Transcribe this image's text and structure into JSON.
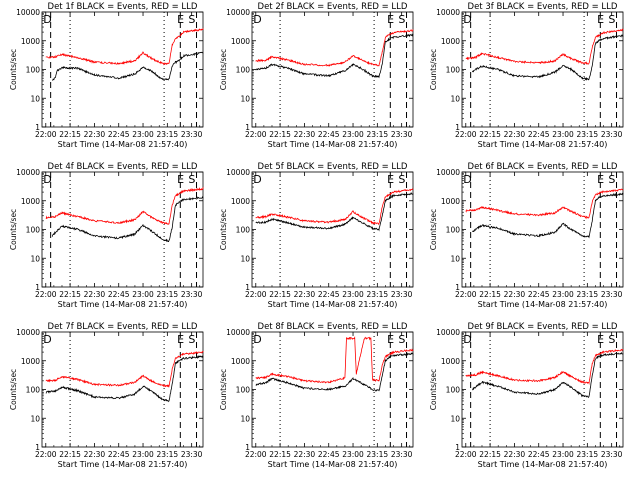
{
  "xlabel": "Start Time (14-Mar-08 21:57:40)",
  "ylabel": "Counts/sec",
  "colors": {
    "events": "#000000",
    "lld": "#ff0000",
    "axes": "#000000"
  },
  "ytick_labels": [
    "1",
    "10",
    "100",
    "1000",
    "10000"
  ],
  "xtick_labels": [
    "22:00",
    "22:15",
    "22:30",
    "22:45",
    "23:00",
    "23:15",
    "23:30"
  ],
  "chart_data": [
    {
      "type": "line",
      "title": "Det 1f BLACK = Events, RED = LLD",
      "marks": [
        "D",
        "E",
        "S"
      ],
      "x_range": [
        "21:57:40",
        "23:37:00"
      ],
      "y_scale": "log",
      "ylim": [
        1,
        10000
      ],
      "dashed_lines": [
        "22:03",
        "23:23",
        "23:33"
      ],
      "dotted_lines": [
        "22:15",
        "23:13"
      ],
      "series": [
        {
          "name": "Events",
          "x": [
            "22:04",
            "22:06",
            "22:07",
            "22:10",
            "22:20",
            "22:30",
            "22:45",
            "22:55",
            "23:00",
            "23:05",
            "23:12",
            "23:16",
            "23:18",
            "23:20",
            "23:22",
            "23:25",
            "23:37"
          ],
          "y": [
            40,
            55,
            90,
            115,
            110,
            65,
            50,
            70,
            120,
            90,
            45,
            45,
            130,
            180,
            200,
            300,
            380
          ]
        },
        {
          "name": "LLD",
          "x": [
            "22:00",
            "22:06",
            "22:10",
            "22:20",
            "22:30",
            "22:45",
            "22:55",
            "23:00",
            "23:05",
            "23:12",
            "23:16",
            "23:18",
            "23:20",
            "23:22",
            "23:25",
            "23:37"
          ],
          "y": [
            260,
            280,
            330,
            260,
            180,
            160,
            200,
            380,
            250,
            160,
            160,
            700,
            1200,
            1400,
            2000,
            2500
          ]
        }
      ]
    },
    {
      "type": "line",
      "title": "Det 2f BLACK = Events, RED = LLD",
      "marks": [
        "D",
        "E",
        "S"
      ],
      "x_range": [
        "21:57:40",
        "23:37:00"
      ],
      "y_scale": "log",
      "ylim": [
        1,
        10000
      ],
      "dashed_lines": [
        "23:23",
        "23:33"
      ],
      "dotted_lines": [
        "22:15",
        "23:13"
      ],
      "series": [
        {
          "name": "Events",
          "x": [
            "22:00",
            "22:06",
            "22:10",
            "22:20",
            "22:30",
            "22:45",
            "22:55",
            "23:00",
            "23:05",
            "23:12",
            "23:16",
            "23:18",
            "23:20",
            "23:22",
            "23:25",
            "23:37"
          ],
          "y": [
            100,
            110,
            150,
            110,
            70,
            60,
            90,
            150,
            110,
            60,
            55,
            150,
            900,
            1100,
            1300,
            1600
          ]
        },
        {
          "name": "LLD",
          "x": [
            "22:00",
            "22:06",
            "22:10",
            "22:20",
            "22:30",
            "22:45",
            "22:55",
            "23:00",
            "23:05",
            "23:12",
            "23:16",
            "23:18",
            "23:20",
            "23:22",
            "23:25",
            "23:37"
          ],
          "y": [
            200,
            210,
            280,
            210,
            150,
            140,
            180,
            300,
            220,
            150,
            140,
            400,
            1300,
            1600,
            1900,
            2300
          ]
        }
      ]
    },
    {
      "type": "line",
      "title": "Det 3f BLACK = Events, RED = LLD",
      "marks": [
        "D",
        "E",
        "S"
      ],
      "x_range": [
        "21:57:40",
        "23:37:00"
      ],
      "y_scale": "log",
      "ylim": [
        1,
        10000
      ],
      "dashed_lines": [
        "22:03",
        "23:23",
        "23:33"
      ],
      "dotted_lines": [
        "22:15",
        "23:13"
      ],
      "series": [
        {
          "name": "Events",
          "x": [
            "22:04",
            "22:06",
            "22:10",
            "22:20",
            "22:30",
            "22:45",
            "22:55",
            "23:00",
            "23:05",
            "23:12",
            "23:16",
            "23:18",
            "23:20",
            "23:22",
            "23:25",
            "23:37"
          ],
          "y": [
            80,
            100,
            130,
            100,
            60,
            55,
            80,
            140,
            100,
            50,
            45,
            130,
            800,
            1000,
            1200,
            1500
          ]
        },
        {
          "name": "LLD",
          "x": [
            "22:00",
            "22:06",
            "22:10",
            "22:20",
            "22:30",
            "22:45",
            "22:55",
            "23:00",
            "23:05",
            "23:12",
            "23:16",
            "23:18",
            "23:20",
            "23:22",
            "23:25",
            "23:37"
          ],
          "y": [
            240,
            260,
            360,
            260,
            190,
            170,
            200,
            340,
            240,
            170,
            160,
            600,
            1300,
            1500,
            1900,
            2400
          ]
        }
      ]
    },
    {
      "type": "line",
      "title": "Det 4f BLACK = Events, RED = LLD",
      "marks": [
        "D",
        "E",
        "S"
      ],
      "x_range": [
        "21:57:40",
        "23:37:00"
      ],
      "y_scale": "log",
      "ylim": [
        1,
        10000
      ],
      "dashed_lines": [
        "22:03",
        "23:23",
        "23:33"
      ],
      "dotted_lines": [
        "22:15",
        "23:13"
      ],
      "series": [
        {
          "name": "Events",
          "x": [
            "22:04",
            "22:06",
            "22:10",
            "22:20",
            "22:30",
            "22:45",
            "22:55",
            "23:00",
            "23:05",
            "23:12",
            "23:16",
            "23:18",
            "23:20",
            "23:22",
            "23:25",
            "23:37"
          ],
          "y": [
            60,
            80,
            130,
            100,
            60,
            50,
            70,
            140,
            90,
            45,
            40,
            120,
            700,
            900,
            1100,
            1300
          ]
        },
        {
          "name": "LLD",
          "x": [
            "22:00",
            "22:06",
            "22:10",
            "22:20",
            "22:30",
            "22:45",
            "22:55",
            "23:00",
            "23:05",
            "23:12",
            "23:16",
            "23:18",
            "23:20",
            "23:22",
            "23:25",
            "23:37"
          ],
          "y": [
            260,
            280,
            380,
            280,
            200,
            170,
            220,
            420,
            270,
            170,
            160,
            700,
            1500,
            1700,
            2200,
            2600
          ]
        }
      ]
    },
    {
      "type": "line",
      "title": "Det 5f BLACK = Events, RED = LLD",
      "marks": [
        "D",
        "E",
        "S"
      ],
      "x_range": [
        "21:57:40",
        "23:37:00"
      ],
      "y_scale": "log",
      "ylim": [
        1,
        10000
      ],
      "dashed_lines": [
        "23:23",
        "23:33"
      ],
      "dotted_lines": [
        "22:15",
        "23:13"
      ],
      "series": [
        {
          "name": "Events",
          "x": [
            "22:00",
            "22:06",
            "22:10",
            "22:20",
            "22:30",
            "22:45",
            "22:55",
            "23:00",
            "23:05",
            "23:12",
            "23:16",
            "23:18",
            "23:20",
            "23:22",
            "23:25",
            "23:37"
          ],
          "y": [
            170,
            180,
            230,
            170,
            120,
            110,
            150,
            260,
            180,
            110,
            100,
            300,
            1000,
            1200,
            1500,
            1800
          ]
        },
        {
          "name": "LLD",
          "x": [
            "22:00",
            "22:06",
            "22:10",
            "22:20",
            "22:30",
            "22:45",
            "22:55",
            "23:00",
            "23:05",
            "23:12",
            "23:16",
            "23:18",
            "23:20",
            "23:22",
            "23:25",
            "23:37"
          ],
          "y": [
            260,
            280,
            340,
            270,
            200,
            180,
            220,
            420,
            280,
            170,
            160,
            600,
            1400,
            1600,
            2000,
            2500
          ]
        }
      ]
    },
    {
      "type": "line",
      "title": "Det 6f BLACK = Events, RED = LLD",
      "marks": [
        "D",
        "E",
        "S"
      ],
      "x_range": [
        "21:57:40",
        "23:37:00"
      ],
      "y_scale": "log",
      "ylim": [
        1,
        10000
      ],
      "dashed_lines": [
        "22:03",
        "23:23",
        "23:33"
      ],
      "dotted_lines": [
        "22:15",
        "23:13"
      ],
      "series": [
        {
          "name": "Events",
          "x": [
            "22:04",
            "22:06",
            "22:10",
            "22:20",
            "22:30",
            "22:45",
            "22:55",
            "23:00",
            "23:05",
            "23:12",
            "23:16",
            "23:18",
            "23:20",
            "23:22",
            "23:25",
            "23:37"
          ],
          "y": [
            80,
            100,
            140,
            110,
            70,
            60,
            80,
            160,
            100,
            60,
            55,
            200,
            1000,
            1300,
            1500,
            1700
          ]
        },
        {
          "name": "LLD",
          "x": [
            "22:00",
            "22:06",
            "22:10",
            "22:20",
            "22:30",
            "22:45",
            "22:55",
            "23:00",
            "23:05",
            "23:12",
            "23:16",
            "23:18",
            "23:20",
            "23:22",
            "23:25",
            "23:37"
          ],
          "y": [
            450,
            470,
            600,
            460,
            350,
            320,
            380,
            600,
            430,
            280,
            260,
            900,
            1600,
            1800,
            2100,
            2400
          ]
        }
      ]
    },
    {
      "type": "line",
      "title": "Det 7f BLACK = Events, RED = LLD",
      "marks": [
        "D",
        "E",
        "S"
      ],
      "x_range": [
        "21:57:40",
        "23:37:00"
      ],
      "y_scale": "log",
      "ylim": [
        1,
        10000
      ],
      "dashed_lines": [
        "23:23",
        "23:33"
      ],
      "dotted_lines": [
        "22:15",
        "23:13"
      ],
      "series": [
        {
          "name": "Events",
          "x": [
            "22:00",
            "22:06",
            "22:10",
            "22:20",
            "22:30",
            "22:45",
            "22:55",
            "23:00",
            "23:05",
            "23:12",
            "23:16",
            "23:18",
            "23:20",
            "23:22",
            "23:25",
            "23:37"
          ],
          "y": [
            80,
            90,
            120,
            90,
            55,
            50,
            70,
            130,
            90,
            45,
            40,
            150,
            800,
            1000,
            1200,
            1400
          ]
        },
        {
          "name": "LLD",
          "x": [
            "22:00",
            "22:06",
            "22:10",
            "22:20",
            "22:30",
            "22:45",
            "22:55",
            "23:00",
            "23:05",
            "23:12",
            "23:16",
            "23:18",
            "23:20",
            "23:22",
            "23:25",
            "23:37"
          ],
          "y": [
            200,
            210,
            280,
            220,
            150,
            140,
            180,
            300,
            200,
            140,
            130,
            500,
            1200,
            1400,
            1700,
            2000
          ]
        }
      ]
    },
    {
      "type": "line",
      "title": "Det 8f BLACK = Events, RED = LLD",
      "marks": [
        "D",
        "E",
        "S"
      ],
      "x_range": [
        "21:57:40",
        "23:37:00"
      ],
      "y_scale": "log",
      "ylim": [
        1,
        10000
      ],
      "dashed_lines": [
        "23:23",
        "23:33"
      ],
      "dotted_lines": [
        "22:15",
        "23:13"
      ],
      "series": [
        {
          "name": "Events",
          "x": [
            "22:00",
            "22:06",
            "22:10",
            "22:20",
            "22:30",
            "22:45",
            "22:55",
            "23:00",
            "23:05",
            "23:12",
            "23:16",
            "23:18",
            "23:20",
            "23:22",
            "23:25",
            "23:37"
          ],
          "y": [
            150,
            170,
            240,
            170,
            110,
            100,
            130,
            240,
            170,
            100,
            90,
            300,
            1000,
            1300,
            1500,
            1800
          ]
        },
        {
          "name": "LLD",
          "x": [
            "22:00",
            "22:06",
            "22:10",
            "22:20",
            "22:30",
            "22:45",
            "22:55",
            "22:56",
            "23:01",
            "23:02",
            "23:07",
            "23:08",
            "23:11",
            "23:12",
            "23:16",
            "23:18",
            "23:20",
            "23:22",
            "23:25",
            "23:37"
          ],
          "y": [
            250,
            260,
            340,
            280,
            200,
            180,
            250,
            6000,
            6000,
            350,
            6000,
            6000,
            6000,
            220,
            200,
            700,
            1400,
            1600,
            2000,
            2400
          ]
        }
      ]
    },
    {
      "type": "line",
      "title": "Det 9f BLACK = Events, RED = LLD",
      "marks": [
        "D",
        "E",
        "S"
      ],
      "x_range": [
        "21:57:40",
        "23:37:00"
      ],
      "y_scale": "log",
      "ylim": [
        1,
        10000
      ],
      "dashed_lines": [
        "22:03",
        "23:23",
        "23:33"
      ],
      "dotted_lines": [
        "22:15",
        "23:13"
      ],
      "series": [
        {
          "name": "Events",
          "x": [
            "22:04",
            "22:06",
            "22:10",
            "22:20",
            "22:30",
            "22:45",
            "22:55",
            "23:00",
            "23:05",
            "23:12",
            "23:16",
            "23:18",
            "23:20",
            "23:22",
            "23:25",
            "23:37"
          ],
          "y": [
            100,
            120,
            180,
            130,
            80,
            70,
            100,
            180,
            120,
            60,
            55,
            300,
            1200,
            1400,
            1600,
            1800
          ]
        },
        {
          "name": "LLD",
          "x": [
            "22:00",
            "22:06",
            "22:10",
            "22:20",
            "22:30",
            "22:45",
            "22:55",
            "23:00",
            "23:05",
            "23:12",
            "23:16",
            "23:18",
            "23:20",
            "23:22",
            "23:25",
            "23:37"
          ],
          "y": [
            300,
            320,
            400,
            300,
            210,
            200,
            260,
            420,
            280,
            180,
            170,
            800,
            1500,
            1700,
            2000,
            2400
          ]
        }
      ]
    }
  ]
}
